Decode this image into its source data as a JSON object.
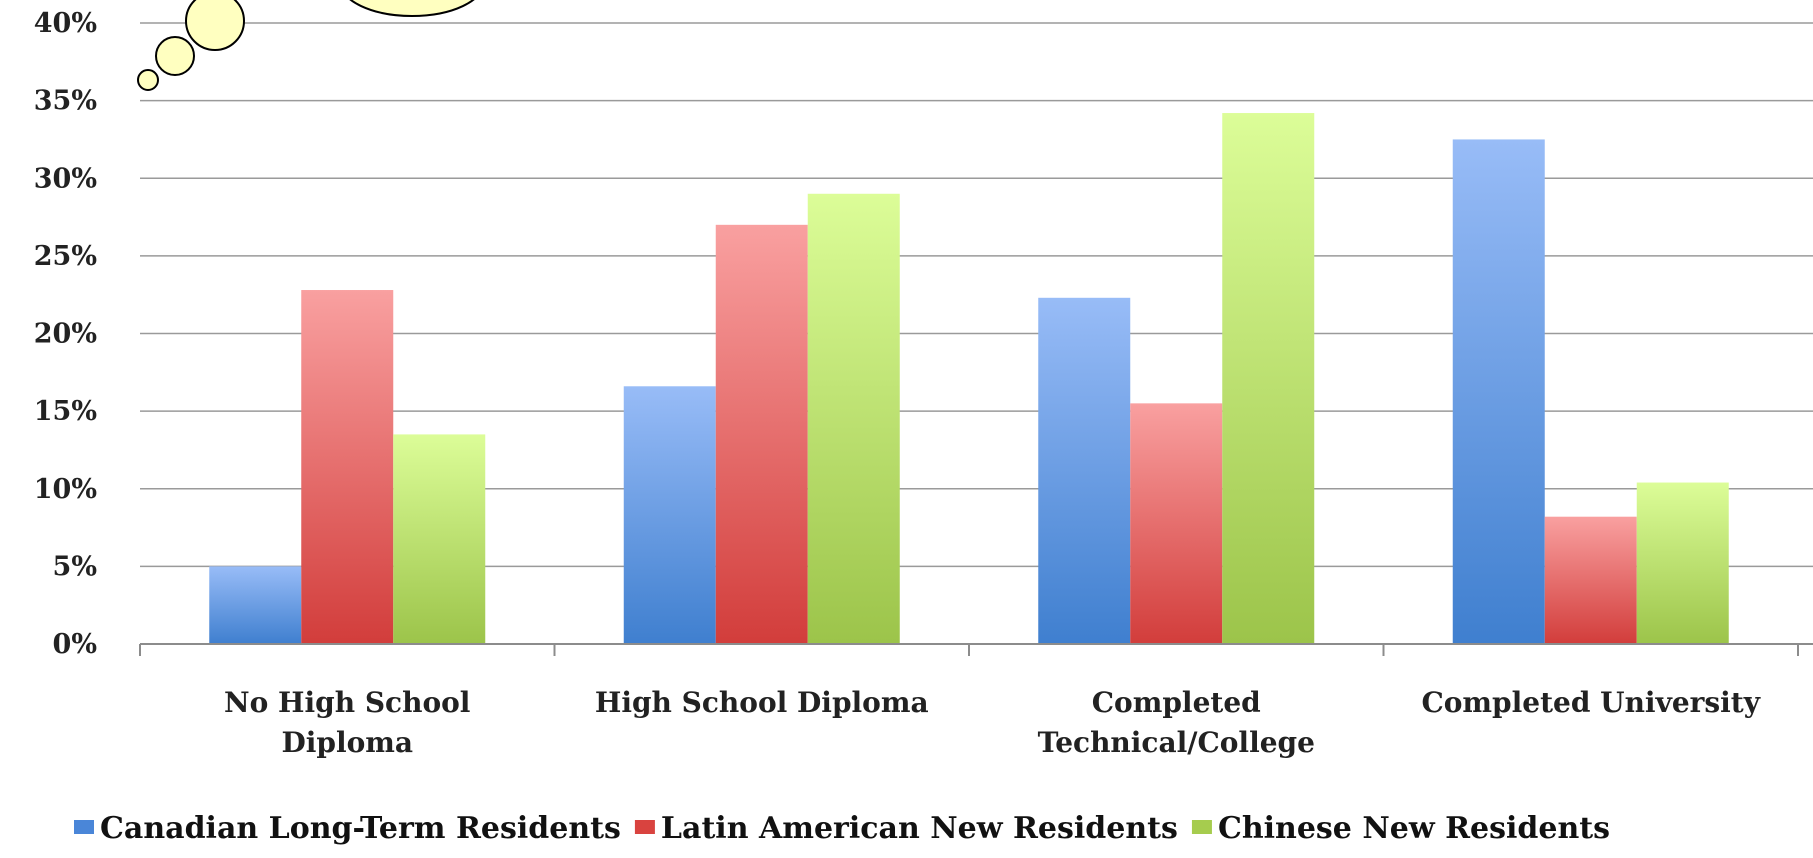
{
  "chart_data": {
    "type": "bar",
    "categories": [
      [
        "No High School",
        "Diploma"
      ],
      [
        "High School Diploma"
      ],
      [
        "Completed",
        "Technical/College"
      ],
      [
        "Completed University"
      ]
    ],
    "series": [
      {
        "name": "Canadian Long-Term Residents",
        "values": [
          5.0,
          16.6,
          22.3,
          32.5
        ]
      },
      {
        "name": "Latin American New Residents",
        "values": [
          22.8,
          27.0,
          15.5,
          8.2
        ]
      },
      {
        "name": "Chinese New Residents",
        "values": [
          13.5,
          29.0,
          34.2,
          10.4
        ]
      }
    ],
    "y_ticks": [
      "0%",
      "5%",
      "10%",
      "15%",
      "20%",
      "25%",
      "30%",
      "35%",
      "40%"
    ],
    "ylim": [
      0,
      40
    ],
    "y_unit": "%",
    "grid": true,
    "legend_position": "bottom",
    "colors": {
      "series": [
        {
          "top": "#98bcf7",
          "bottom": "#3f7fcf"
        },
        {
          "top": "#f9a0a0",
          "bottom": "#d23d3b"
        },
        {
          "top": "#dcfd98",
          "bottom": "#9cc44a"
        }
      ],
      "legend": [
        "#4a86d8",
        "#d9433f",
        "#a6cc4e"
      ],
      "grid": "#9a9a9a",
      "axis": "#8c8c8c"
    }
  },
  "decoration": {
    "thought_bubble": true
  }
}
